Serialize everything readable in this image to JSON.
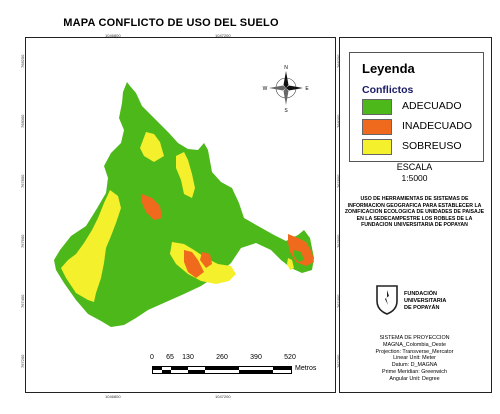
{
  "map": {
    "title": "MAPA CONFLICTO DE USO DEL SUELO",
    "top_ticks": [
      "1046800",
      "1047200"
    ],
    "bottom_ticks": [
      "1046800",
      "1047200"
    ],
    "left_ticks": [
      "768200",
      "768000",
      "767800",
      "767600",
      "767400",
      "767200"
    ],
    "right_ticks": [
      "768200",
      "768000",
      "767800",
      "767600",
      "767400",
      "767200"
    ],
    "north_arrow": {
      "icon": "compass-rose-icon",
      "n": "N",
      "s": "S",
      "e": "E",
      "w": "W"
    }
  },
  "legend": {
    "title": "Leyenda",
    "subtitle": "Conflictos",
    "items": [
      {
        "label": "ADECUADO",
        "color": "#4cb81a"
      },
      {
        "label": "INADECUADO",
        "color": "#f06a1e"
      },
      {
        "label": "SOBREUSO",
        "color": "#f4f02c"
      }
    ]
  },
  "scale": {
    "label": "ESCALA",
    "value": "1:5000"
  },
  "description": "USO DE HERRAMIENTAS DE SISTEMAS DE INFORMACION GEOGRAFICA PARA ESTABLECER LA ZONIFICACION ECOLOGICA DE UNIDADES DE PAISAJE EN LA SEDECAMPESTRE LOS ROBLES DE LA FUNDACION UNIVERSITARIA DE POPAYAN",
  "logo": {
    "line1": "FUNDACIÓN",
    "line2": "UNIVERSITARIA",
    "line3": "DE POPAYÁN",
    "icon": "university-shield-icon"
  },
  "projection": [
    "SISTEMA DE PROYECCION",
    "MAGNA_Colombia_Oeste",
    "Projection: Transverse_Mercator",
    "Linear Unit: Meter",
    "Datum: D_MAGNA",
    "Prime Meridian: Greenwich",
    "Angular Unit: Degree"
  ],
  "scale_bar": {
    "ticks": [
      "0",
      "65",
      "130",
      "260",
      "390",
      "520"
    ],
    "unit": "Metros"
  }
}
